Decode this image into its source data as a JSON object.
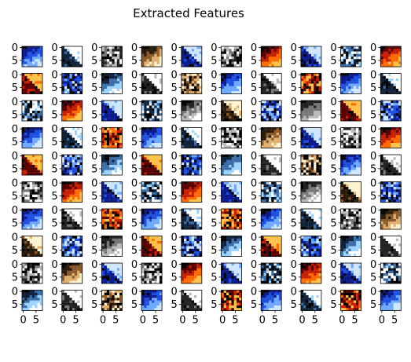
{
  "chart_data": {
    "type": "heatmap",
    "title": "Extracted Features",
    "grid": {
      "rows": 10,
      "cols": 10,
      "panel_pixels": 8
    },
    "x_ticks": [
      "0",
      "5"
    ],
    "y_ticks": [
      "0",
      "5"
    ],
    "xlabel": "",
    "ylabel": "",
    "panels_content": "100 small 8x8 RGB feature patches; pixel values not readable"
  }
}
